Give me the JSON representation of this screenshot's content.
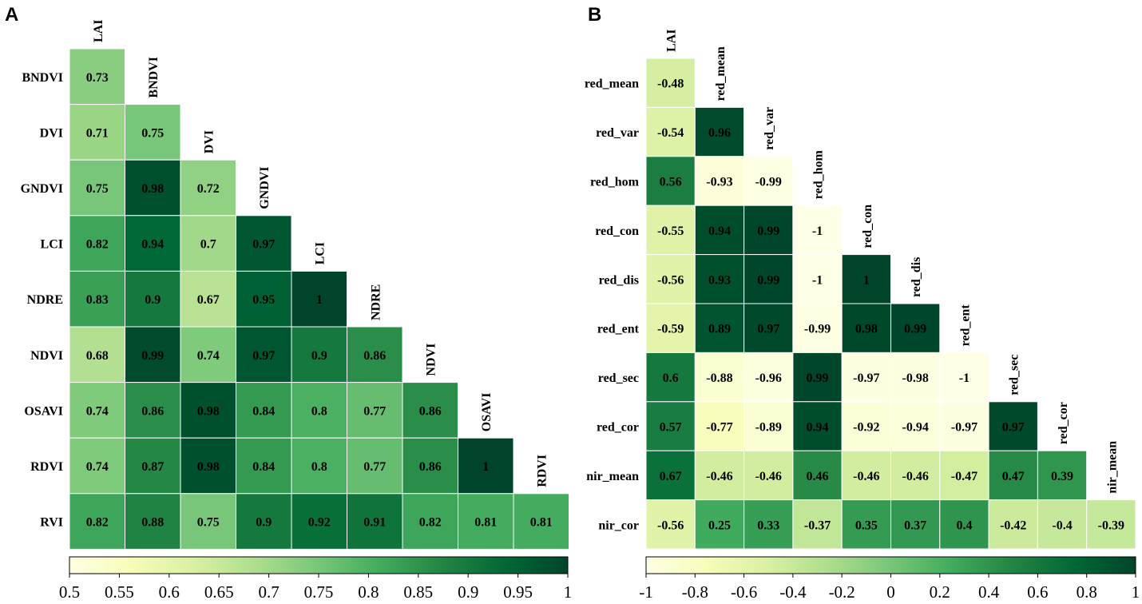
{
  "chart_data": [
    {
      "type": "heatmap",
      "panel_label": "A",
      "layout": "lower-triangle",
      "column_labels": [
        "LAI",
        "BNDVI",
        "DVI",
        "GNDVI",
        "LCI",
        "NDRE",
        "NDVI",
        "OSAVI",
        "RDVI"
      ],
      "row_labels": [
        "BNDVI",
        "DVI",
        "GNDVI",
        "LCI",
        "NDRE",
        "NDVI",
        "OSAVI",
        "RDVI",
        "RVI"
      ],
      "values": [
        [
          "0.73"
        ],
        [
          "0.71",
          "0.75"
        ],
        [
          "0.75",
          "0.98",
          "0.72"
        ],
        [
          "0.82",
          "0.94",
          "0.7",
          "0.97"
        ],
        [
          "0.83",
          "0.9",
          "0.67",
          "0.95",
          "1"
        ],
        [
          "0.68",
          "0.99",
          "0.74",
          "0.97",
          "0.9",
          "0.86"
        ],
        [
          "0.74",
          "0.86",
          "0.98",
          "0.84",
          "0.8",
          "0.77",
          "0.86"
        ],
        [
          "0.74",
          "0.87",
          "0.98",
          "0.84",
          "0.8",
          "0.77",
          "0.86",
          "1"
        ],
        [
          "0.82",
          "0.88",
          "0.75",
          "0.9",
          "0.92",
          "0.91",
          "0.82",
          "0.81",
          "0.81"
        ]
      ],
      "colorbar": {
        "range": [
          0.5,
          1
        ],
        "ticks": [
          "0.5",
          "0.55",
          "0.6",
          "0.65",
          "0.7",
          "0.75",
          "0.8",
          "0.85",
          "0.9",
          "0.95",
          "1"
        ]
      },
      "colors": [
        "#ffffe5",
        "#f7fcb9",
        "#d9f0a3",
        "#addd8e",
        "#78c679",
        "#41ab5d",
        "#238443",
        "#006837",
        "#004529"
      ]
    },
    {
      "type": "heatmap",
      "panel_label": "B",
      "layout": "lower-triangle",
      "column_labels": [
        "LAI",
        "red_mean",
        "red_var",
        "red_hom",
        "red_con",
        "red_dis",
        "red_ent",
        "red_sec",
        "red_cor",
        "nir_mean"
      ],
      "row_labels": [
        "red_mean",
        "red_var",
        "red_hom",
        "red_con",
        "red_dis",
        "red_ent",
        "red_sec",
        "red_cor",
        "nir_mean",
        "nir_cor"
      ],
      "values": [
        [
          "-0.48"
        ],
        [
          "-0.54",
          "0.96"
        ],
        [
          "0.56",
          "-0.93",
          "-0.99"
        ],
        [
          "-0.55",
          "0.94",
          "0.99",
          "-1"
        ],
        [
          "-0.56",
          "0.93",
          "0.99",
          "-1",
          "1"
        ],
        [
          "-0.59",
          "0.89",
          "0.97",
          "-0.99",
          "0.98",
          "0.99"
        ],
        [
          "0.6",
          "-0.88",
          "-0.96",
          "0.99",
          "-0.97",
          "-0.98",
          "-1"
        ],
        [
          "0.57",
          "-0.77",
          "-0.89",
          "0.94",
          "-0.92",
          "-0.94",
          "-0.97",
          "0.97"
        ],
        [
          "0.67",
          "-0.46",
          "-0.46",
          "0.46",
          "-0.46",
          "-0.46",
          "-0.47",
          "0.47",
          "0.39"
        ],
        [
          "-0.56",
          "0.25",
          "0.33",
          "-0.37",
          "0.35",
          "0.37",
          "0.4",
          "-0.42",
          "-0.4",
          "-0.39"
        ]
      ],
      "colorbar": {
        "range": [
          -1,
          1
        ],
        "ticks": [
          "-1",
          "-0.8",
          "-0.6",
          "-0.4",
          "-0.2",
          "0",
          "0.2",
          "0.4",
          "0.6",
          "0.8",
          "1"
        ]
      },
      "colors": [
        "#ffffe5",
        "#f7fcb9",
        "#d9f0a3",
        "#addd8e",
        "#78c679",
        "#41ab5d",
        "#238443",
        "#006837",
        "#004529"
      ]
    }
  ]
}
